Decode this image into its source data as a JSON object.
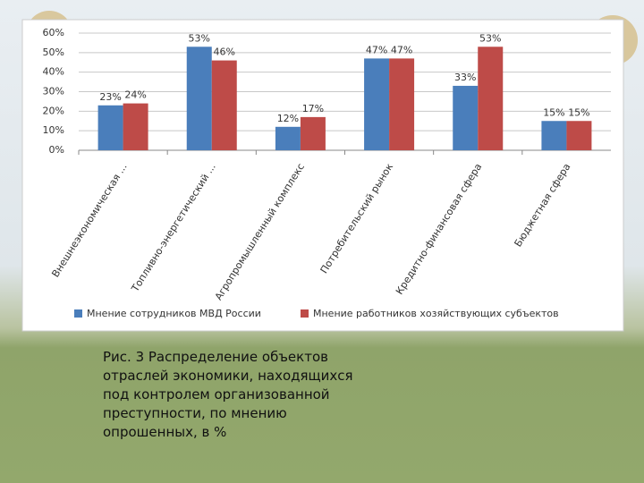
{
  "chart_data": {
    "type": "bar",
    "categories": [
      "Внешнеэкономическая ...",
      "Топливно-энергетический ...",
      "Агропромышленный комплекс",
      "Потребительский рынок",
      "Кредитно-финансовая сфера",
      "Бюджетная сфера"
    ],
    "series": [
      {
        "name": "Мнение сотрудников МВД России",
        "color": "#4a7ebb",
        "values": [
          23,
          53,
          12,
          47,
          33,
          15
        ],
        "value_labels": [
          "23%",
          "53%",
          "12%",
          "47%",
          "33%",
          "15%"
        ]
      },
      {
        "name": "Мнение работников хозяйствующих субъектов",
        "color": "#be4b48",
        "values": [
          24,
          46,
          17,
          47,
          53,
          15
        ],
        "value_labels": [
          "24%",
          "46%",
          "17%",
          "47%",
          "53%",
          "15%"
        ]
      }
    ],
    "ylim": [
      0,
      60
    ],
    "yticks": [
      {
        "value": 0,
        "label": "0%"
      },
      {
        "value": 10,
        "label": "10%"
      },
      {
        "value": 20,
        "label": "20%"
      },
      {
        "value": 30,
        "label": "30%"
      },
      {
        "value": 40,
        "label": "40%"
      },
      {
        "value": 50,
        "label": "50%"
      },
      {
        "value": 60,
        "label": "60%"
      }
    ],
    "grid": true,
    "legend": "bottom"
  },
  "caption": "Рис. 3 Распределение объектов отраслей экономики, находящихся под контролем организованной преступности, по мнению опрошенных, в %"
}
